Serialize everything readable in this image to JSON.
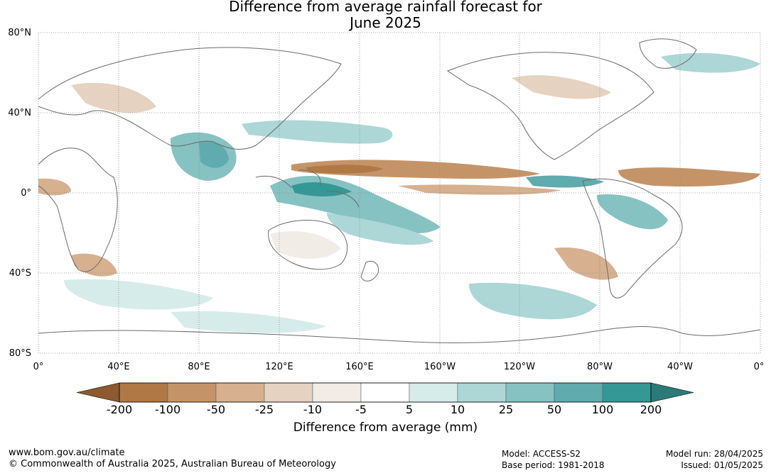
{
  "title": {
    "line1": "Difference from average rainfall forecast for",
    "line2": "June 2025"
  },
  "lat_labels": [
    "80°N",
    "40°N",
    "0°",
    "40°S",
    "80°S"
  ],
  "lon_labels": [
    "0°",
    "40°E",
    "80°E",
    "120°E",
    "160°E",
    "160°W",
    "120°W",
    "80°W",
    "40°W",
    "0°"
  ],
  "colorbar": {
    "ticks": [
      "-200",
      "-100",
      "-50",
      "-25",
      "-10",
      "-5",
      "5",
      "10",
      "25",
      "50",
      "100",
      "200"
    ],
    "colors": [
      "#8c5a2e",
      "#b07845",
      "#c49468",
      "#d6b08f",
      "#e6d2c0",
      "#f2ece7",
      "#ffffff",
      "#d6ecea",
      "#acd7d6",
      "#86c2c2",
      "#5fabad",
      "#339896",
      "#2a7a78"
    ],
    "label": "Difference from average (mm)"
  },
  "footer": {
    "website": "www.bom.gov.au/climate",
    "copyright": "© Commonwealth of Australia 2025, Australian Bureau of Meteorology",
    "model": "Model: ACCESS-S2",
    "base_period": "Base period: 1981-2018",
    "model_run": "Model run: 28/04/2025",
    "issued": "Issued: 01/05/2025"
  }
}
